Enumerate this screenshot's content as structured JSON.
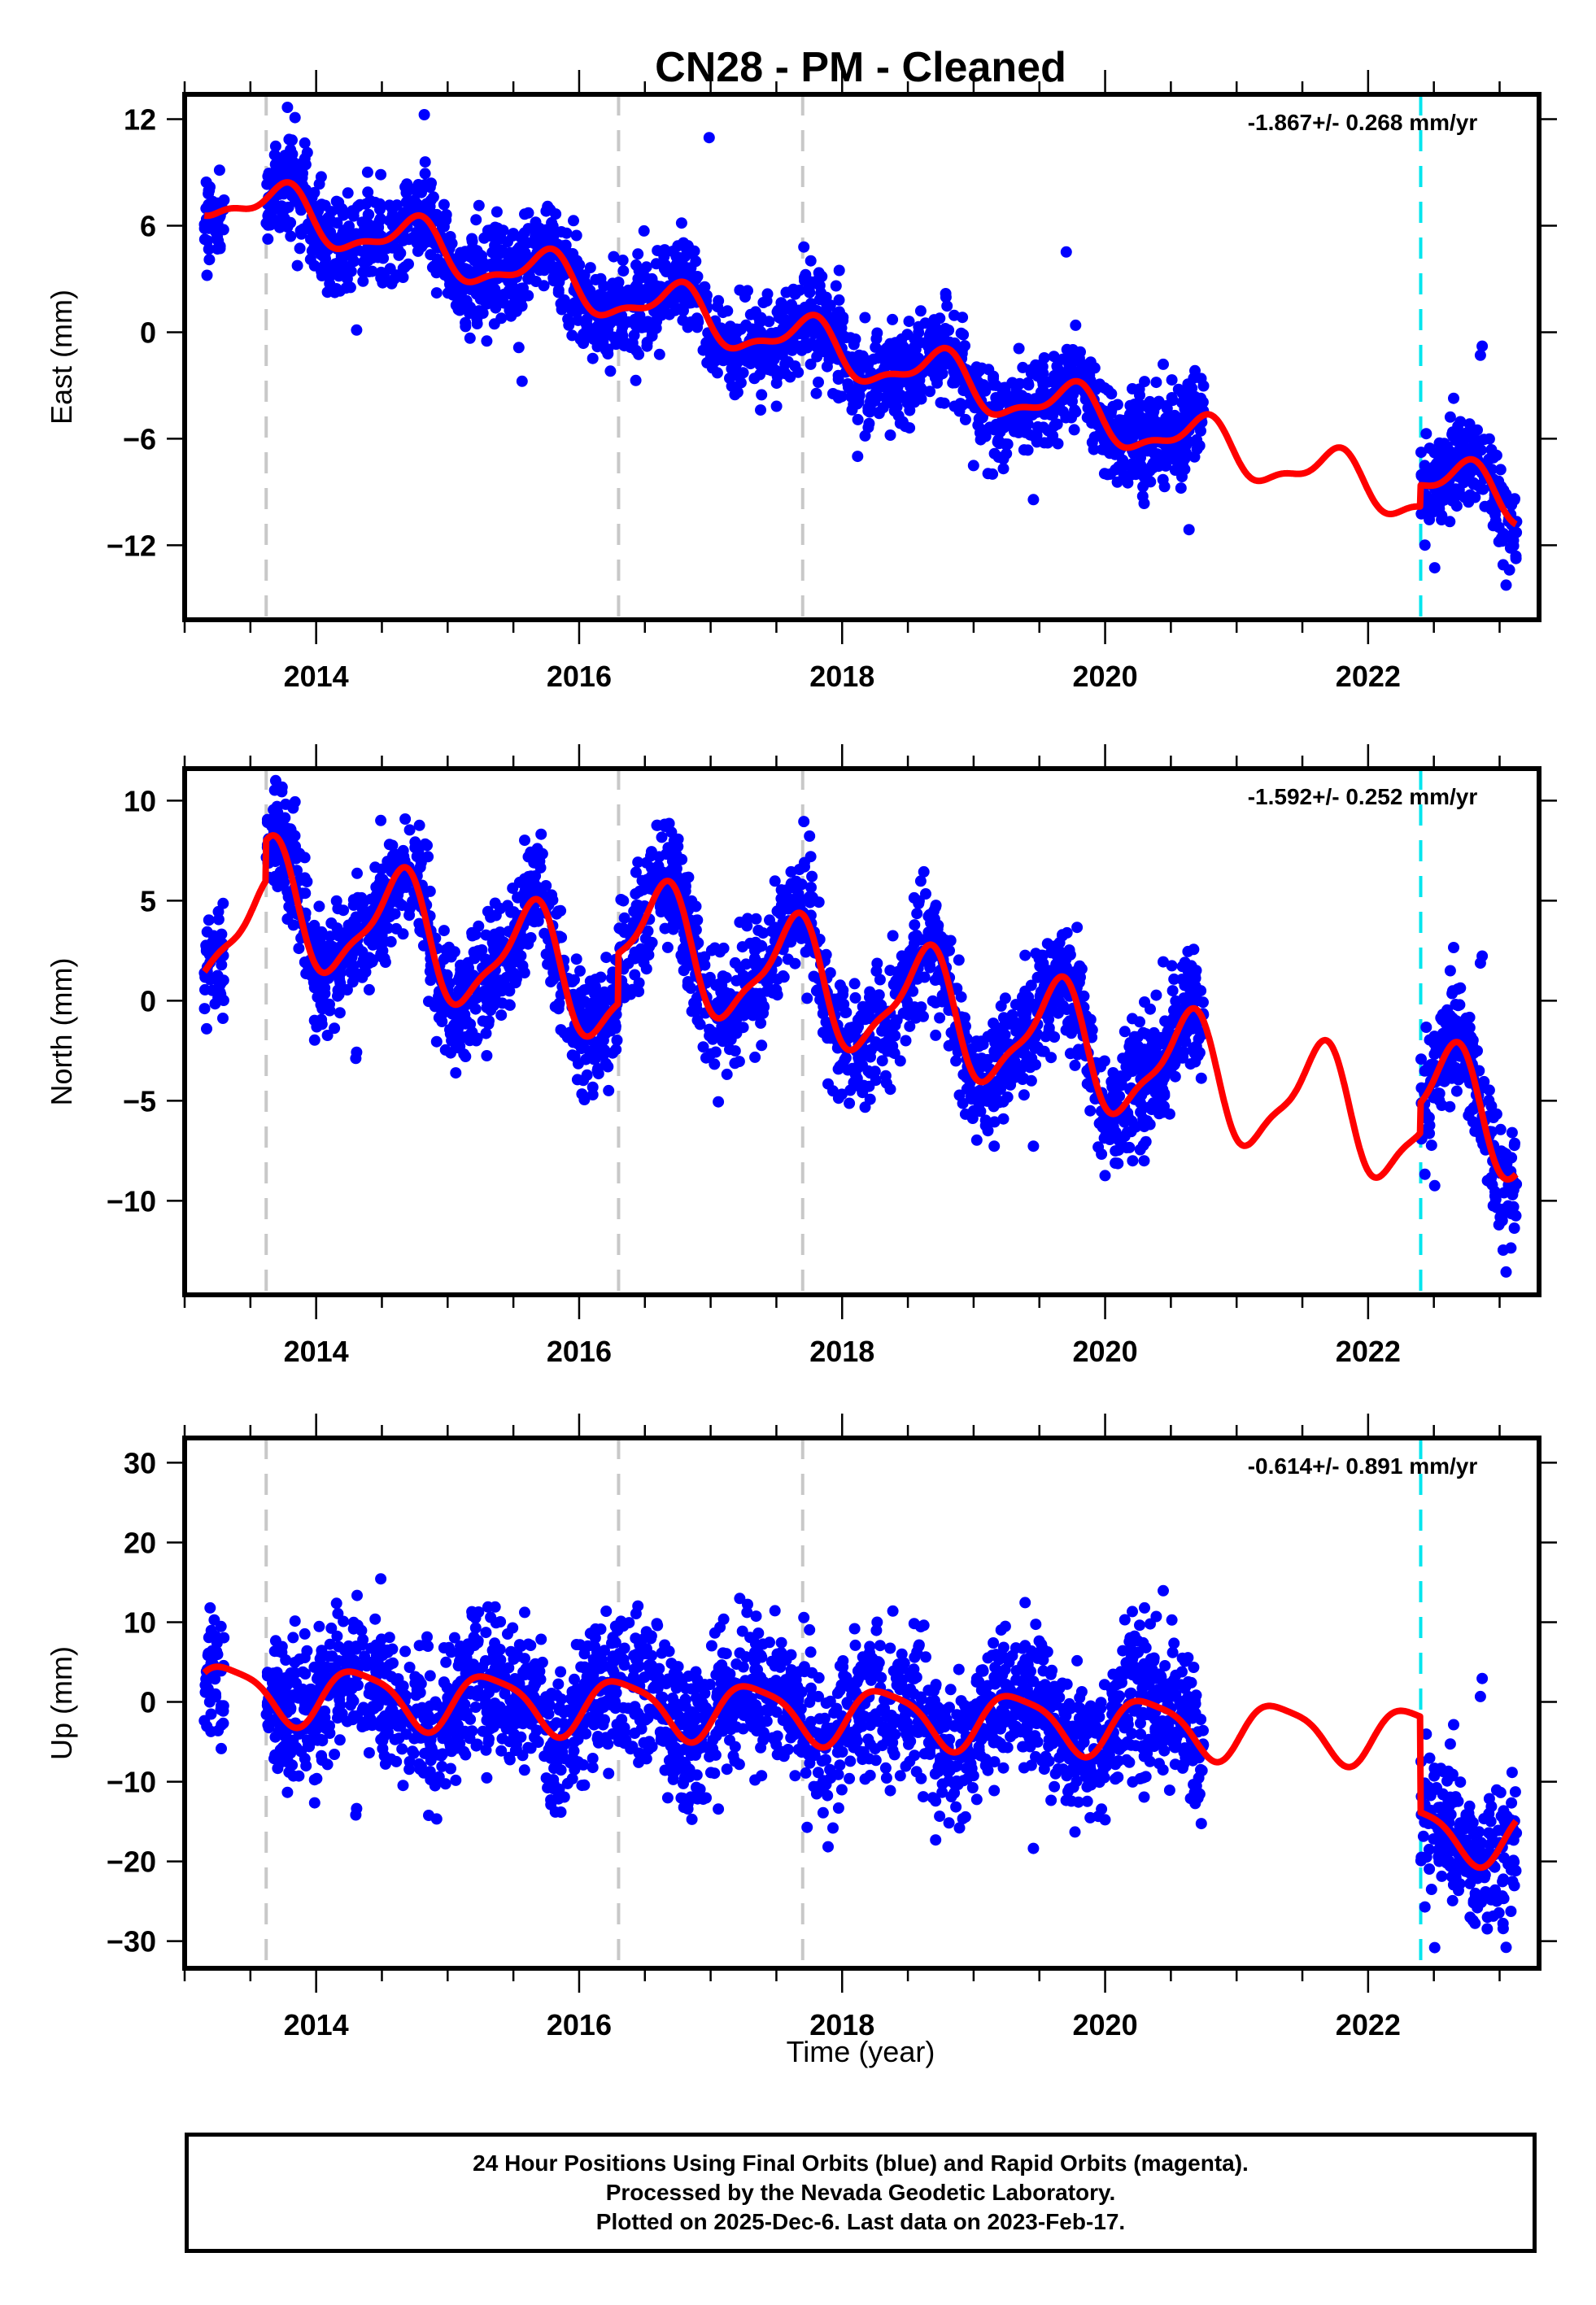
{
  "chart_data": {
    "title": "CN28  - PM - Cleaned",
    "xlabel": "Time (year)",
    "xlim": [
      2013.0,
      2023.3
    ],
    "x_ticks": [
      2014,
      2016,
      2018,
      2020,
      2022
    ],
    "x_tick_labels": [
      "2014",
      "2016",
      "2018",
      "2020",
      "2022"
    ],
    "x_minor_step": 0.5,
    "vertical_markers": [
      {
        "x": 2013.62,
        "color": "#c8c8c8",
        "style": "dashed"
      },
      {
        "x": 2016.3,
        "color": "#c8c8c8",
        "style": "dashed"
      },
      {
        "x": 2017.7,
        "color": "#c8c8c8",
        "style": "dashed"
      },
      {
        "x": 2022.4,
        "color": "#00e5ee",
        "style": "dashed"
      }
    ],
    "colors": {
      "points": "#0000ff",
      "model": "#ff0000",
      "frame": "#000000"
    },
    "panels": [
      {
        "type": "scatter",
        "component": "east",
        "ylabel": "East (mm)",
        "ylim": [
          -16.2,
          13.4
        ],
        "y_ticks": [
          12,
          6,
          0,
          -6,
          -12
        ],
        "y_tick_labels": [
          "12",
          "6",
          "0",
          "−6",
          "−12"
        ],
        "rate_label": "-1.867+/- 0.268 mm/yr",
        "trend": {
          "rate": -1.867,
          "intercept_at_2013": 8.2
        },
        "seasonal": {
          "amp1": 1.3,
          "amp2": 0.5,
          "phase1": 0.5,
          "phase2": 0.2
        },
        "scatter_sd": 1.3,
        "offsets": [
          {
            "x": 2013.62,
            "dy": 0.0
          },
          {
            "x": 2022.4,
            "dy": 1.2
          }
        ],
        "data_segments": [
          [
            2013.15,
            2013.3
          ],
          [
            2013.62,
            2020.75
          ],
          [
            2022.4,
            2023.13
          ]
        ],
        "model_segments": [
          [
            2013.15,
            2023.13
          ]
        ]
      },
      {
        "type": "scatter",
        "component": "north",
        "ylabel": "North (mm)",
        "ylim": [
          -14.7,
          11.6
        ],
        "y_ticks": [
          10,
          5,
          0,
          -5,
          -10
        ],
        "y_tick_labels": [
          "10",
          "5",
          "0",
          "−5",
          "−10"
        ],
        "rate_label": "-1.592+/- 0.252 mm/yr",
        "trend": {
          "rate": -1.592,
          "intercept_at_2013": 4.0
        },
        "seasonal": {
          "amp1": 2.8,
          "amp2": 0.8,
          "phase1": 0.38,
          "phase2": 0.1
        },
        "scatter_sd": 1.5,
        "offsets": [
          {
            "x": 2013.62,
            "dy": 2.0
          },
          {
            "x": 2016.3,
            "dy": 2.5
          },
          {
            "x": 2022.4,
            "dy": 1.5
          }
        ],
        "data_segments": [
          [
            2013.15,
            2013.3
          ],
          [
            2013.62,
            2020.75
          ],
          [
            2022.4,
            2023.13
          ]
        ],
        "model_segments": [
          [
            2013.15,
            2023.13
          ]
        ]
      },
      {
        "type": "scatter",
        "component": "up",
        "ylabel": "Up (mm)",
        "ylim": [
          -33.4,
          33.1
        ],
        "y_ticks": [
          30,
          20,
          10,
          0,
          -10,
          -20,
          -30
        ],
        "y_tick_labels": [
          "30",
          "20",
          "10",
          "0",
          "−10",
          "−20",
          "−30"
        ],
        "rate_label": "-0.614+/- 0.891 mm/yr",
        "trend": {
          "rate": -0.614,
          "intercept_at_2013": 1.5
        },
        "seasonal": {
          "amp1": 3.5,
          "amp2": 0.8,
          "phase1": 0.08,
          "phase2": 0.0
        },
        "scatter_sd": 4.5,
        "offsets": [
          {
            "x": 2022.4,
            "dy": -12.0
          }
        ],
        "data_segments": [
          [
            2013.15,
            2013.3
          ],
          [
            2013.62,
            2020.75
          ],
          [
            2022.4,
            2023.13
          ]
        ],
        "model_segments": [
          [
            2013.15,
            2023.13
          ]
        ]
      }
    ]
  },
  "footer": {
    "line1": "24 Hour Positions Using Final Orbits (blue) and Rapid Orbits (magenta).",
    "line2": "Processed by the Nevada Geodetic Laboratory.",
    "line3": "Plotted on 2025-Dec-6. Last data on 2023-Feb-17."
  }
}
